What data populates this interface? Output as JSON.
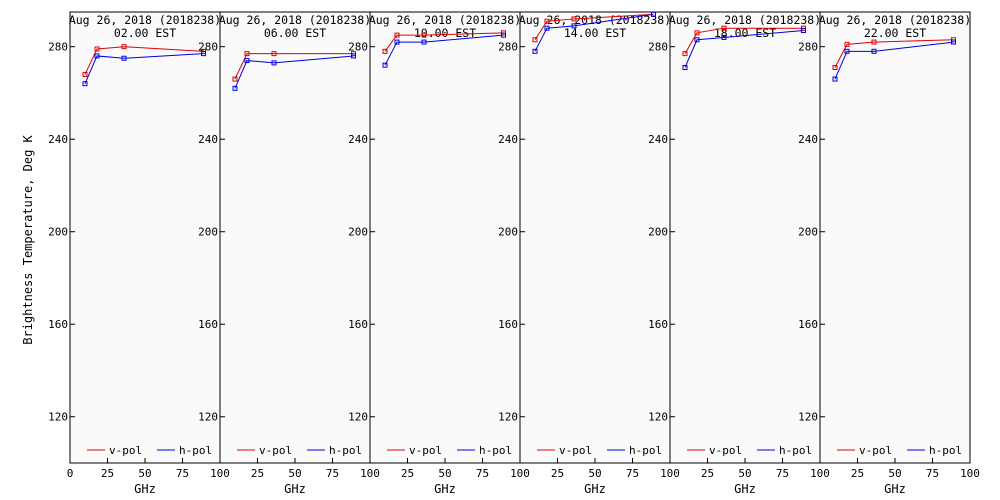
{
  "chart_data": {
    "type": "line",
    "ylabel": "Brightness Temperature, Deg K",
    "xlabel": "GHz",
    "ylim": [
      100,
      295
    ],
    "xlim": [
      0,
      100
    ],
    "y_ticks": [
      120,
      160,
      200,
      240,
      280
    ],
    "x_ticks": [
      0,
      25,
      50,
      75,
      100
    ],
    "legend": {
      "placement": "bottom"
    },
    "colors": {
      "v-pol": "#e00000",
      "h-pol": "#0000e0"
    },
    "panels": [
      {
        "title_line1": "Aug 26, 2018 (2018238)",
        "title_line2": "02.00 EST",
        "series": [
          {
            "name": "v-pol",
            "x": [
              10,
              18,
              36,
              89
            ],
            "y": [
              268,
              279,
              280,
              278
            ]
          },
          {
            "name": "h-pol",
            "x": [
              10,
              18,
              36,
              89
            ],
            "y": [
              264,
              276,
              275,
              277
            ]
          }
        ]
      },
      {
        "title_line1": "Aug 26, 2018 (2018238)",
        "title_line2": "06.00 EST",
        "series": [
          {
            "name": "v-pol",
            "x": [
              10,
              18,
              36,
              89
            ],
            "y": [
              266,
              277,
              277,
              277
            ]
          },
          {
            "name": "h-pol",
            "x": [
              10,
              18,
              36,
              89
            ],
            "y": [
              262,
              274,
              273,
              276
            ]
          }
        ]
      },
      {
        "title_line1": "Aug 26, 2018 (2018238)",
        "title_line2": "10.00 EST",
        "series": [
          {
            "name": "v-pol",
            "x": [
              10,
              18,
              36,
              89
            ],
            "y": [
              278,
              285,
              285,
              286
            ]
          },
          {
            "name": "h-pol",
            "x": [
              10,
              18,
              36,
              89
            ],
            "y": [
              272,
              282,
              282,
              285
            ]
          }
        ]
      },
      {
        "title_line1": "Aug 26, 2018 (2018238)",
        "title_line2": "14.00 EST",
        "series": [
          {
            "name": "v-pol",
            "x": [
              10,
              18,
              36,
              89
            ],
            "y": [
              283,
              291,
              292,
              294
            ]
          },
          {
            "name": "h-pol",
            "x": [
              10,
              18,
              36,
              89
            ],
            "y": [
              278,
              288,
              289,
              294
            ]
          }
        ]
      },
      {
        "title_line1": "Aug 26, 2018 (2018238)",
        "title_line2": "18.00 EST",
        "series": [
          {
            "name": "v-pol",
            "x": [
              10,
              18,
              36,
              89
            ],
            "y": [
              277,
              286,
              288,
              288
            ]
          },
          {
            "name": "h-pol",
            "x": [
              10,
              18,
              36,
              89
            ],
            "y": [
              271,
              283,
              284,
              287
            ]
          }
        ]
      },
      {
        "title_line1": "Aug 26, 2018 (2018238)",
        "title_line2": "22.00 EST",
        "series": [
          {
            "name": "v-pol",
            "x": [
              10,
              18,
              36,
              89
            ],
            "y": [
              271,
              281,
              282,
              283
            ]
          },
          {
            "name": "h-pol",
            "x": [
              10,
              18,
              36,
              89
            ],
            "y": [
              266,
              278,
              278,
              282
            ]
          }
        ]
      }
    ]
  }
}
